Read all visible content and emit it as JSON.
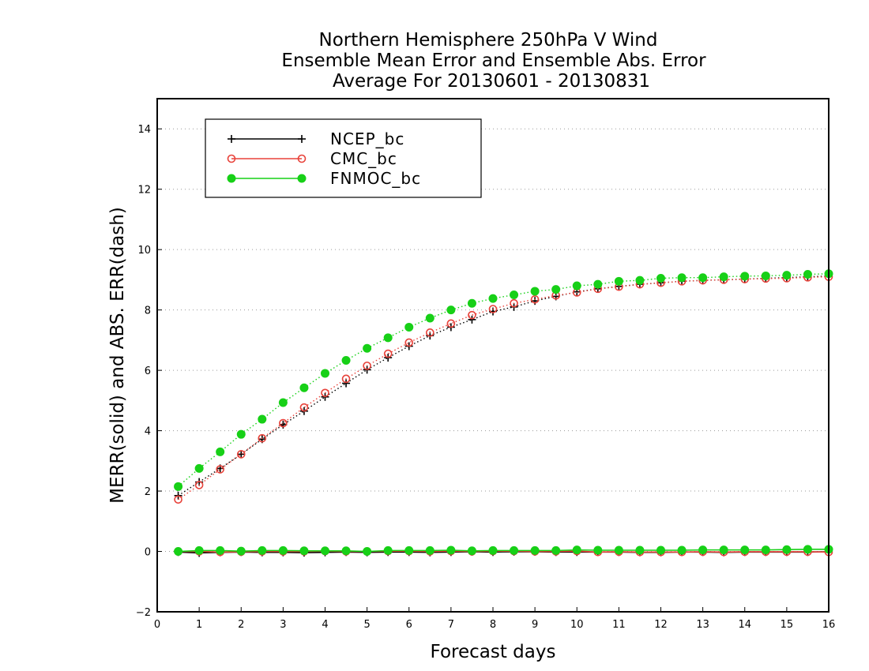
{
  "chart_data": {
    "type": "line",
    "title_lines": [
      "Northern Hemisphere 250hPa V Wind",
      "Ensemble Mean Error and Ensemble Abs. Error",
      "Average For 20130601 - 20130831"
    ],
    "xlabel": "Forecast days",
    "ylabel": "MERR(solid) and ABS. ERR(dash)",
    "xlim": [
      0,
      16
    ],
    "ylim": [
      -2,
      15
    ],
    "xticks": [
      "0",
      "1",
      "2",
      "3",
      "4",
      "5",
      "6",
      "7",
      "8",
      "9",
      "10",
      "11",
      "12",
      "13",
      "14",
      "15",
      "16"
    ],
    "yticks": [
      "-2",
      "0",
      "2",
      "4",
      "6",
      "8",
      "10",
      "12",
      "14"
    ],
    "grid": "horizontal dotted",
    "legend_position": "top-left",
    "x": [
      0.5,
      1,
      1.5,
      2,
      2.5,
      3,
      3.5,
      4,
      4.5,
      5,
      5.5,
      6,
      6.5,
      7,
      7.5,
      8,
      8.5,
      9,
      9.5,
      10,
      10.5,
      11,
      11.5,
      12,
      12.5,
      13,
      13.5,
      14,
      14.5,
      15,
      15.5,
      16
    ],
    "series": [
      {
        "name": "NCEP_bc",
        "color": "#000000",
        "marker": "plus",
        "abs_err": [
          1.85,
          2.3,
          2.75,
          3.22,
          3.72,
          4.2,
          4.65,
          5.12,
          5.57,
          6.02,
          6.42,
          6.8,
          7.15,
          7.43,
          7.68,
          7.95,
          8.1,
          8.3,
          8.45,
          8.6,
          8.7,
          8.78,
          8.85,
          8.9,
          8.95,
          8.98,
          9.0,
          9.02,
          9.05,
          9.07,
          9.1,
          9.12
        ],
        "mean_err": [
          -0.02,
          -0.05,
          -0.03,
          -0.02,
          -0.03,
          -0.03,
          -0.04,
          -0.03,
          -0.02,
          -0.03,
          -0.02,
          -0.02,
          -0.03,
          -0.02,
          -0.01,
          -0.02,
          -0.01,
          -0.01,
          -0.02,
          -0.02,
          -0.02,
          -0.02,
          -0.03,
          -0.03,
          -0.02,
          -0.02,
          -0.03,
          -0.02,
          -0.02,
          -0.02,
          -0.02,
          -0.01
        ]
      },
      {
        "name": "CMC_bc",
        "color": "#e8423a",
        "marker": "open-circle",
        "abs_err": [
          1.72,
          2.2,
          2.72,
          3.22,
          3.75,
          4.25,
          4.77,
          5.25,
          5.72,
          6.15,
          6.55,
          6.92,
          7.25,
          7.55,
          7.83,
          8.03,
          8.22,
          8.35,
          8.48,
          8.58,
          8.7,
          8.77,
          8.85,
          8.9,
          8.95,
          8.98,
          9.0,
          9.02,
          9.04,
          9.05,
          9.08,
          9.1
        ],
        "mean_err": [
          0.0,
          0.0,
          -0.02,
          -0.01,
          0.0,
          0.0,
          0.0,
          0.01,
          0.0,
          0.0,
          0.01,
          0.01,
          0.0,
          0.01,
          0.0,
          0.01,
          0.01,
          0.0,
          0.0,
          0.01,
          -0.02,
          -0.01,
          -0.02,
          -0.02,
          -0.02,
          -0.01,
          -0.02,
          -0.01,
          -0.01,
          -0.01,
          -0.01,
          -0.02
        ]
      },
      {
        "name": "FNMOC_bc",
        "color": "#17d017",
        "marker": "filled-circle",
        "abs_err": [
          2.15,
          2.75,
          3.3,
          3.88,
          4.38,
          4.93,
          5.42,
          5.9,
          6.33,
          6.73,
          7.08,
          7.43,
          7.73,
          8.0,
          8.22,
          8.38,
          8.5,
          8.62,
          8.68,
          8.8,
          8.85,
          8.95,
          8.98,
          9.05,
          9.07,
          9.07,
          9.1,
          9.12,
          9.13,
          9.15,
          9.18,
          9.2
        ],
        "mean_err": [
          0.0,
          0.03,
          0.03,
          0.01,
          0.03,
          0.03,
          0.02,
          0.02,
          0.02,
          0.0,
          0.03,
          0.03,
          0.03,
          0.04,
          0.02,
          0.03,
          0.03,
          0.03,
          0.03,
          0.05,
          0.04,
          0.04,
          0.04,
          0.04,
          0.04,
          0.05,
          0.05,
          0.05,
          0.05,
          0.06,
          0.07,
          0.07
        ]
      }
    ]
  }
}
